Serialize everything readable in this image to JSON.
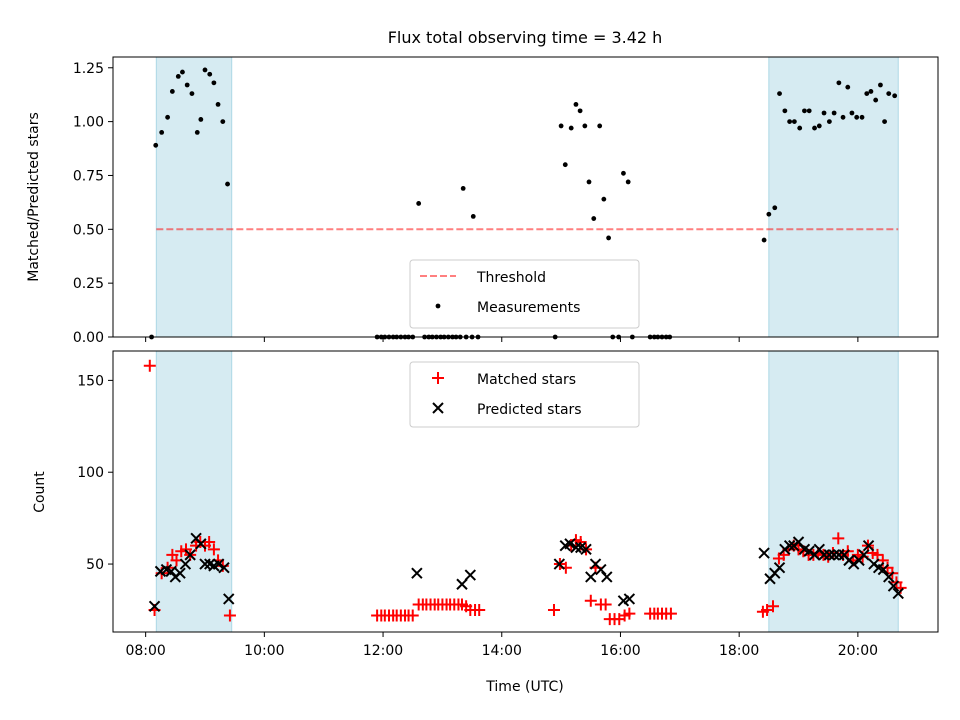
{
  "title": "Flux total observing time = 3.42 h",
  "colors": {
    "band": "#add8e6",
    "threshold": "#ff0000",
    "measurement": "#000000",
    "matched": "#ff0000",
    "predicted": "#000000"
  },
  "chart_data": [
    {
      "type": "scatter",
      "ylabel": "Matched/Predicted stars",
      "x_unit": "hours UTC",
      "xlim": [
        7.45,
        21.35
      ],
      "ylim": [
        0,
        1.3
      ],
      "yticks": [
        0.0,
        0.25,
        0.5,
        0.75,
        1.0,
        1.25
      ],
      "ytick_labels": [
        "0.00",
        "0.25",
        "0.50",
        "0.75",
        "1.00",
        "1.25"
      ],
      "threshold": 0.5,
      "shaded_intervals": [
        [
          8.18,
          9.45
        ],
        [
          18.5,
          20.68
        ]
      ],
      "legend": {
        "position": "lower center",
        "entries": [
          {
            "label": "Threshold",
            "marker": "dashed-line"
          },
          {
            "label": "Measurements",
            "marker": "dot"
          }
        ]
      },
      "series": [
        {
          "name": "Measurements",
          "points": [
            [
              8.1,
              0.0
            ],
            [
              8.17,
              0.89
            ],
            [
              8.27,
              0.95
            ],
            [
              8.37,
              1.02
            ],
            [
              8.45,
              1.14
            ],
            [
              8.55,
              1.21
            ],
            [
              8.62,
              1.23
            ],
            [
              8.7,
              1.17
            ],
            [
              8.78,
              1.13
            ],
            [
              8.87,
              0.95
            ],
            [
              8.93,
              1.01
            ],
            [
              9.0,
              1.24
            ],
            [
              9.08,
              1.22
            ],
            [
              9.15,
              1.18
            ],
            [
              9.22,
              1.08
            ],
            [
              9.3,
              1.0
            ],
            [
              9.38,
              0.71
            ],
            [
              11.9,
              0.0
            ],
            [
              11.97,
              0.0
            ],
            [
              12.03,
              0.0
            ],
            [
              12.1,
              0.0
            ],
            [
              12.17,
              0.0
            ],
            [
              12.23,
              0.0
            ],
            [
              12.3,
              0.0
            ],
            [
              12.37,
              0.0
            ],
            [
              12.43,
              0.0
            ],
            [
              12.5,
              0.0
            ],
            [
              12.6,
              0.62
            ],
            [
              12.7,
              0.0
            ],
            [
              12.77,
              0.0
            ],
            [
              12.83,
              0.0
            ],
            [
              12.9,
              0.0
            ],
            [
              12.97,
              0.0
            ],
            [
              13.03,
              0.0
            ],
            [
              13.1,
              0.0
            ],
            [
              13.17,
              0.0
            ],
            [
              13.23,
              0.0
            ],
            [
              13.3,
              0.0
            ],
            [
              13.35,
              0.69
            ],
            [
              13.4,
              0.0
            ],
            [
              13.5,
              0.0
            ],
            [
              13.52,
              0.56
            ],
            [
              13.6,
              0.0
            ],
            [
              14.9,
              0.0
            ],
            [
              15.0,
              0.98
            ],
            [
              15.07,
              0.8
            ],
            [
              15.17,
              0.97
            ],
            [
              15.25,
              1.08
            ],
            [
              15.32,
              1.05
            ],
            [
              15.4,
              0.98
            ],
            [
              15.47,
              0.72
            ],
            [
              15.55,
              0.55
            ],
            [
              15.65,
              0.98
            ],
            [
              15.72,
              0.64
            ],
            [
              15.8,
              0.46
            ],
            [
              15.87,
              0.0
            ],
            [
              15.97,
              0.0
            ],
            [
              16.05,
              0.76
            ],
            [
              16.13,
              0.72
            ],
            [
              16.2,
              0.0
            ],
            [
              16.5,
              0.0
            ],
            [
              16.57,
              0.0
            ],
            [
              16.63,
              0.0
            ],
            [
              16.7,
              0.0
            ],
            [
              16.77,
              0.0
            ],
            [
              16.83,
              0.0
            ],
            [
              18.42,
              0.45
            ],
            [
              18.5,
              0.57
            ],
            [
              18.6,
              0.6
            ],
            [
              18.68,
              1.13
            ],
            [
              18.77,
              1.05
            ],
            [
              18.85,
              1.0
            ],
            [
              18.93,
              1.0
            ],
            [
              19.02,
              0.97
            ],
            [
              19.1,
              1.05
            ],
            [
              19.18,
              1.05
            ],
            [
              19.27,
              0.97
            ],
            [
              19.35,
              0.98
            ],
            [
              19.43,
              1.04
            ],
            [
              19.52,
              1.0
            ],
            [
              19.6,
              1.04
            ],
            [
              19.68,
              1.18
            ],
            [
              19.75,
              1.02
            ],
            [
              19.83,
              1.16
            ],
            [
              19.9,
              1.04
            ],
            [
              19.98,
              1.02
            ],
            [
              20.07,
              1.02
            ],
            [
              20.15,
              1.13
            ],
            [
              20.22,
              1.14
            ],
            [
              20.3,
              1.1
            ],
            [
              20.38,
              1.17
            ],
            [
              20.45,
              1.0
            ],
            [
              20.52,
              1.13
            ],
            [
              20.62,
              1.12
            ]
          ]
        }
      ]
    },
    {
      "type": "scatter",
      "ylabel": "Count",
      "xlabel": "Time (UTC)",
      "x_unit": "hours UTC",
      "xlim": [
        7.45,
        21.35
      ],
      "ylim": [
        13,
        166
      ],
      "yticks": [
        50,
        100,
        150
      ],
      "ytick_labels": [
        "50",
        "100",
        "150"
      ],
      "xticks": [
        8,
        10,
        12,
        14,
        16,
        18,
        20
      ],
      "xtick_labels": [
        "08:00",
        "10:00",
        "12:00",
        "14:00",
        "16:00",
        "18:00",
        "20:00"
      ],
      "shaded_intervals": [
        [
          8.18,
          9.45
        ],
        [
          18.5,
          20.68
        ]
      ],
      "legend": {
        "position": "upper center",
        "entries": [
          {
            "label": "Matched stars",
            "marker": "plus"
          },
          {
            "label": "Predicted stars",
            "marker": "x"
          }
        ]
      },
      "series": [
        {
          "name": "Matched stars",
          "points": [
            [
              8.07,
              158
            ],
            [
              8.15,
              25
            ],
            [
              8.27,
              45
            ],
            [
              8.37,
              48
            ],
            [
              8.45,
              55
            ],
            [
              8.52,
              52
            ],
            [
              8.6,
              57
            ],
            [
              8.68,
              58
            ],
            [
              8.75,
              55
            ],
            [
              8.85,
              60
            ],
            [
              8.92,
              62
            ],
            [
              9.0,
              60
            ],
            [
              9.07,
              62
            ],
            [
              9.15,
              58
            ],
            [
              9.22,
              52
            ],
            [
              9.3,
              49
            ],
            [
              9.42,
              22
            ],
            [
              11.9,
              22
            ],
            [
              11.97,
              22
            ],
            [
              12.03,
              22
            ],
            [
              12.1,
              22
            ],
            [
              12.17,
              22
            ],
            [
              12.23,
              22
            ],
            [
              12.3,
              22
            ],
            [
              12.37,
              22
            ],
            [
              12.43,
              22
            ],
            [
              12.5,
              22
            ],
            [
              12.6,
              28
            ],
            [
              12.67,
              28
            ],
            [
              12.73,
              28
            ],
            [
              12.8,
              28
            ],
            [
              12.87,
              28
            ],
            [
              12.93,
              28
            ],
            [
              13.0,
              28
            ],
            [
              13.07,
              28
            ],
            [
              13.13,
              28
            ],
            [
              13.2,
              28
            ],
            [
              13.27,
              28
            ],
            [
              13.33,
              28
            ],
            [
              13.4,
              27
            ],
            [
              13.47,
              25
            ],
            [
              13.55,
              25
            ],
            [
              13.62,
              25
            ],
            [
              14.88,
              25
            ],
            [
              14.98,
              50
            ],
            [
              15.08,
              48
            ],
            [
              15.17,
              60
            ],
            [
              15.25,
              63
            ],
            [
              15.33,
              62
            ],
            [
              15.42,
              58
            ],
            [
              15.5,
              30
            ],
            [
              15.58,
              48
            ],
            [
              15.67,
              28
            ],
            [
              15.75,
              28
            ],
            [
              15.82,
              20
            ],
            [
              15.9,
              20
            ],
            [
              15.98,
              20
            ],
            [
              16.07,
              22
            ],
            [
              16.15,
              23
            ],
            [
              16.5,
              23
            ],
            [
              16.57,
              23
            ],
            [
              16.63,
              23
            ],
            [
              16.7,
              23
            ],
            [
              16.77,
              23
            ],
            [
              16.85,
              23
            ],
            [
              18.4,
              24
            ],
            [
              18.47,
              25
            ],
            [
              18.57,
              27
            ],
            [
              18.67,
              53
            ],
            [
              18.75,
              55
            ],
            [
              18.83,
              58
            ],
            [
              18.92,
              60
            ],
            [
              19.0,
              58
            ],
            [
              19.08,
              57
            ],
            [
              19.17,
              55
            ],
            [
              19.25,
              55
            ],
            [
              19.33,
              56
            ],
            [
              19.42,
              55
            ],
            [
              19.5,
              54
            ],
            [
              19.58,
              56
            ],
            [
              19.67,
              64
            ],
            [
              19.75,
              55
            ],
            [
              19.83,
              57
            ],
            [
              19.92,
              52
            ],
            [
              20.0,
              55
            ],
            [
              20.08,
              54
            ],
            [
              20.17,
              60
            ],
            [
              20.25,
              56
            ],
            [
              20.33,
              55
            ],
            [
              20.42,
              52
            ],
            [
              20.5,
              48
            ],
            [
              20.58,
              45
            ],
            [
              20.65,
              40
            ],
            [
              20.72,
              37
            ]
          ]
        },
        {
          "name": "Predicted stars",
          "points": [
            [
              8.15,
              27
            ],
            [
              8.25,
              46
            ],
            [
              8.35,
              47
            ],
            [
              8.43,
              46
            ],
            [
              8.5,
              43
            ],
            [
              8.58,
              45
            ],
            [
              8.67,
              50
            ],
            [
              8.75,
              55
            ],
            [
              8.85,
              64
            ],
            [
              8.93,
              61
            ],
            [
              9.0,
              50
            ],
            [
              9.08,
              50
            ],
            [
              9.15,
              49
            ],
            [
              9.23,
              50
            ],
            [
              9.32,
              48
            ],
            [
              9.4,
              31
            ],
            [
              12.57,
              45
            ],
            [
              13.33,
              39
            ],
            [
              13.47,
              44
            ],
            [
              14.97,
              50
            ],
            [
              15.07,
              60
            ],
            [
              15.15,
              61
            ],
            [
              15.25,
              59
            ],
            [
              15.33,
              59
            ],
            [
              15.42,
              58
            ],
            [
              15.5,
              43
            ],
            [
              15.58,
              50
            ],
            [
              15.67,
              47
            ],
            [
              15.77,
              43
            ],
            [
              16.05,
              30
            ],
            [
              16.15,
              31
            ],
            [
              18.42,
              56
            ],
            [
              18.52,
              42
            ],
            [
              18.6,
              45
            ],
            [
              18.68,
              48
            ],
            [
              18.77,
              58
            ],
            [
              18.85,
              60
            ],
            [
              18.92,
              60
            ],
            [
              19.0,
              62
            ],
            [
              19.1,
              58
            ],
            [
              19.18,
              57
            ],
            [
              19.27,
              55
            ],
            [
              19.35,
              58
            ],
            [
              19.43,
              55
            ],
            [
              19.52,
              55
            ],
            [
              19.6,
              55
            ],
            [
              19.68,
              55
            ],
            [
              19.77,
              55
            ],
            [
              19.85,
              52
            ],
            [
              19.93,
              50
            ],
            [
              20.02,
              52
            ],
            [
              20.1,
              55
            ],
            [
              20.18,
              60
            ],
            [
              20.27,
              50
            ],
            [
              20.35,
              48
            ],
            [
              20.43,
              47
            ],
            [
              20.52,
              43
            ],
            [
              20.6,
              38
            ],
            [
              20.68,
              34
            ]
          ]
        }
      ]
    }
  ]
}
